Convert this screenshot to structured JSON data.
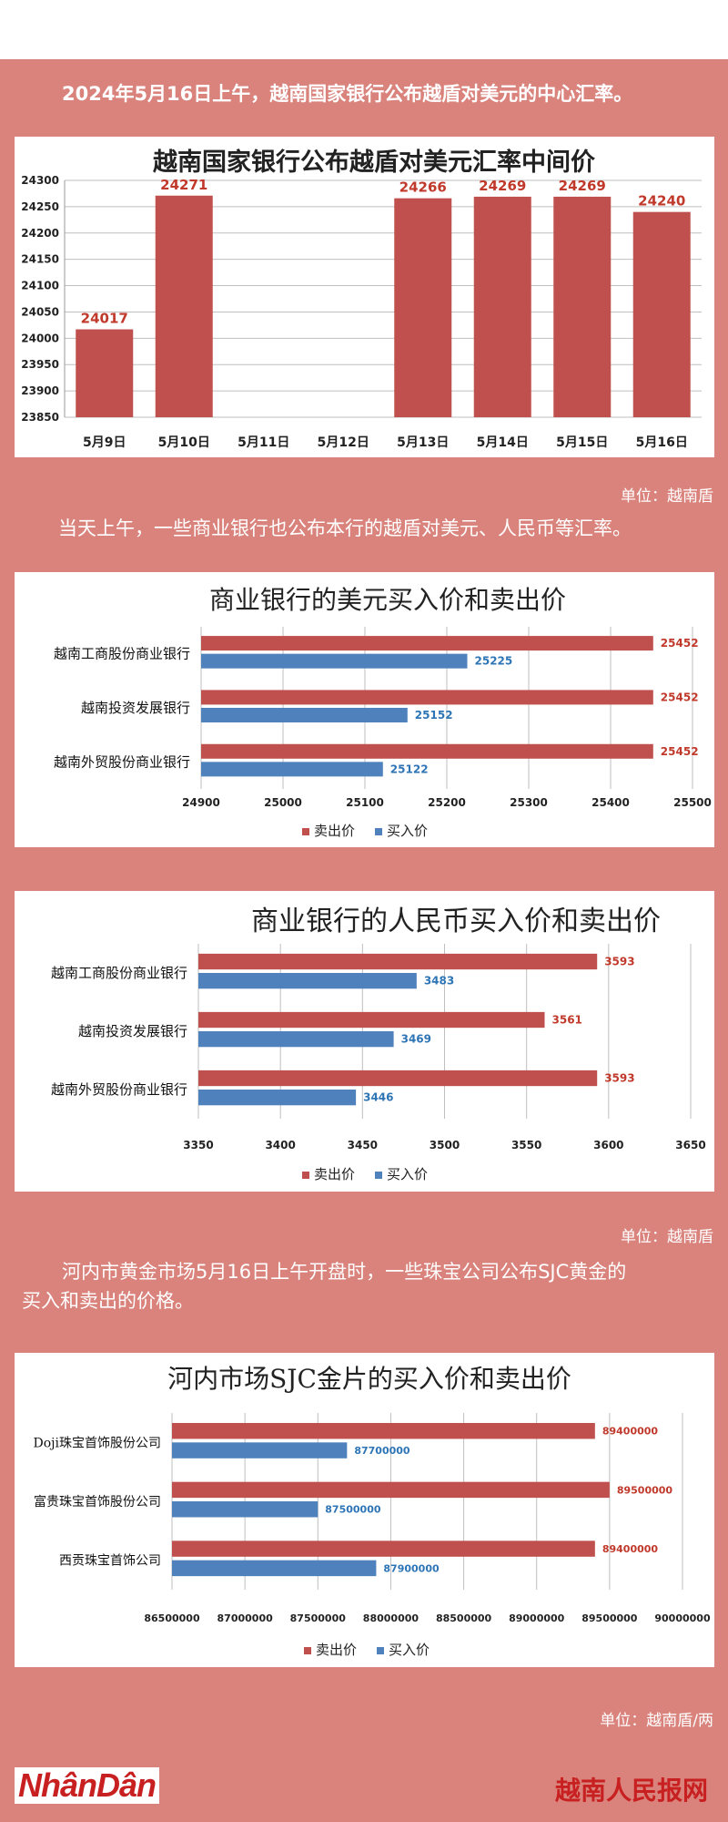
{
  "intro1": "2024年5月16日上午，越南国家银行公布越盾对美元的中心汇率。",
  "intro2": "当天上午，一些商业银行也公布本行的越盾对美元、人民币等汇率。",
  "intro3_line1": "河内市黄金市场5月16日上午开盘时，一些珠宝公司公布SJC黄金的",
  "intro3_line2": "买入和卖出的价格。",
  "unit1": "单位：越南盾",
  "unit2": "单位：越南盾",
  "unit3": "单位：越南盾/两",
  "footer_logo": "NhânDân",
  "footer_brand": "越南人民报网",
  "colors": {
    "sell": "#c0504d",
    "buy": "#4f81bd",
    "background": "#d9837c"
  },
  "chart_data": [
    {
      "type": "bar",
      "title": "越南国家银行公布越盾对美元汇率中间价",
      "categories": [
        "5月9日",
        "5月10日",
        "5月11日",
        "5月12日",
        "5月13日",
        "5月14日",
        "5月15日",
        "5月16日"
      ],
      "values": [
        24017,
        24271,
        null,
        null,
        24266,
        24269,
        24269,
        24240
      ],
      "ylim": [
        23850,
        24300
      ],
      "yticks": [
        "23850",
        "23900",
        "23950",
        "24000",
        "24050",
        "24100",
        "24150",
        "24200",
        "24250",
        "24300"
      ],
      "grid": true
    },
    {
      "type": "bar",
      "orientation": "horizontal",
      "title": "商业银行的美元买入价和卖出价",
      "categories": [
        "越南工商股份商业银行",
        "越南投资发展银行",
        "越南外贸股份商业银行"
      ],
      "series": [
        {
          "name": "卖出价",
          "values": [
            25452,
            25452,
            25452
          ]
        },
        {
          "name": "买入价",
          "values": [
            25225,
            25152,
            25122
          ]
        }
      ],
      "xlim": [
        24900,
        25500
      ],
      "xticks": [
        "24900",
        "25000",
        "25100",
        "25200",
        "25300",
        "25400",
        "25500"
      ],
      "legend": "bottom",
      "grid": true
    },
    {
      "type": "bar",
      "orientation": "horizontal",
      "title": "商业银行的人民币买入价和卖出价",
      "categories": [
        "越南工商股份商业银行",
        "越南投资发展银行",
        "越南外贸股份商业银行"
      ],
      "series": [
        {
          "name": "卖出价",
          "values": [
            3593,
            3561,
            3593
          ]
        },
        {
          "name": "买入价",
          "values": [
            3483,
            3469,
            3446
          ]
        }
      ],
      "xlim": [
        3350,
        3650
      ],
      "xticks": [
        "3350",
        "3400",
        "3450",
        "3500",
        "3550",
        "3600",
        "3650"
      ],
      "legend": "bottom",
      "grid": true
    },
    {
      "type": "bar",
      "orientation": "horizontal",
      "title": "河内市场SJC金片的买入价和卖出价",
      "categories": [
        "Doji珠宝首饰股份公司",
        "富贵珠宝首饰股份公司",
        "西贡珠宝首饰公司"
      ],
      "series": [
        {
          "name": "卖出价",
          "values": [
            89400000,
            89500000,
            89400000
          ]
        },
        {
          "name": "买入价",
          "values": [
            87700000,
            87500000,
            87900000
          ]
        }
      ],
      "xlim": [
        86500000,
        90000000
      ],
      "xticks": [
        "86500000",
        "87000000",
        "87500000",
        "88000000",
        "88500000",
        "89000000",
        "89500000",
        "90000000"
      ],
      "legend": "bottom",
      "grid": true
    }
  ]
}
